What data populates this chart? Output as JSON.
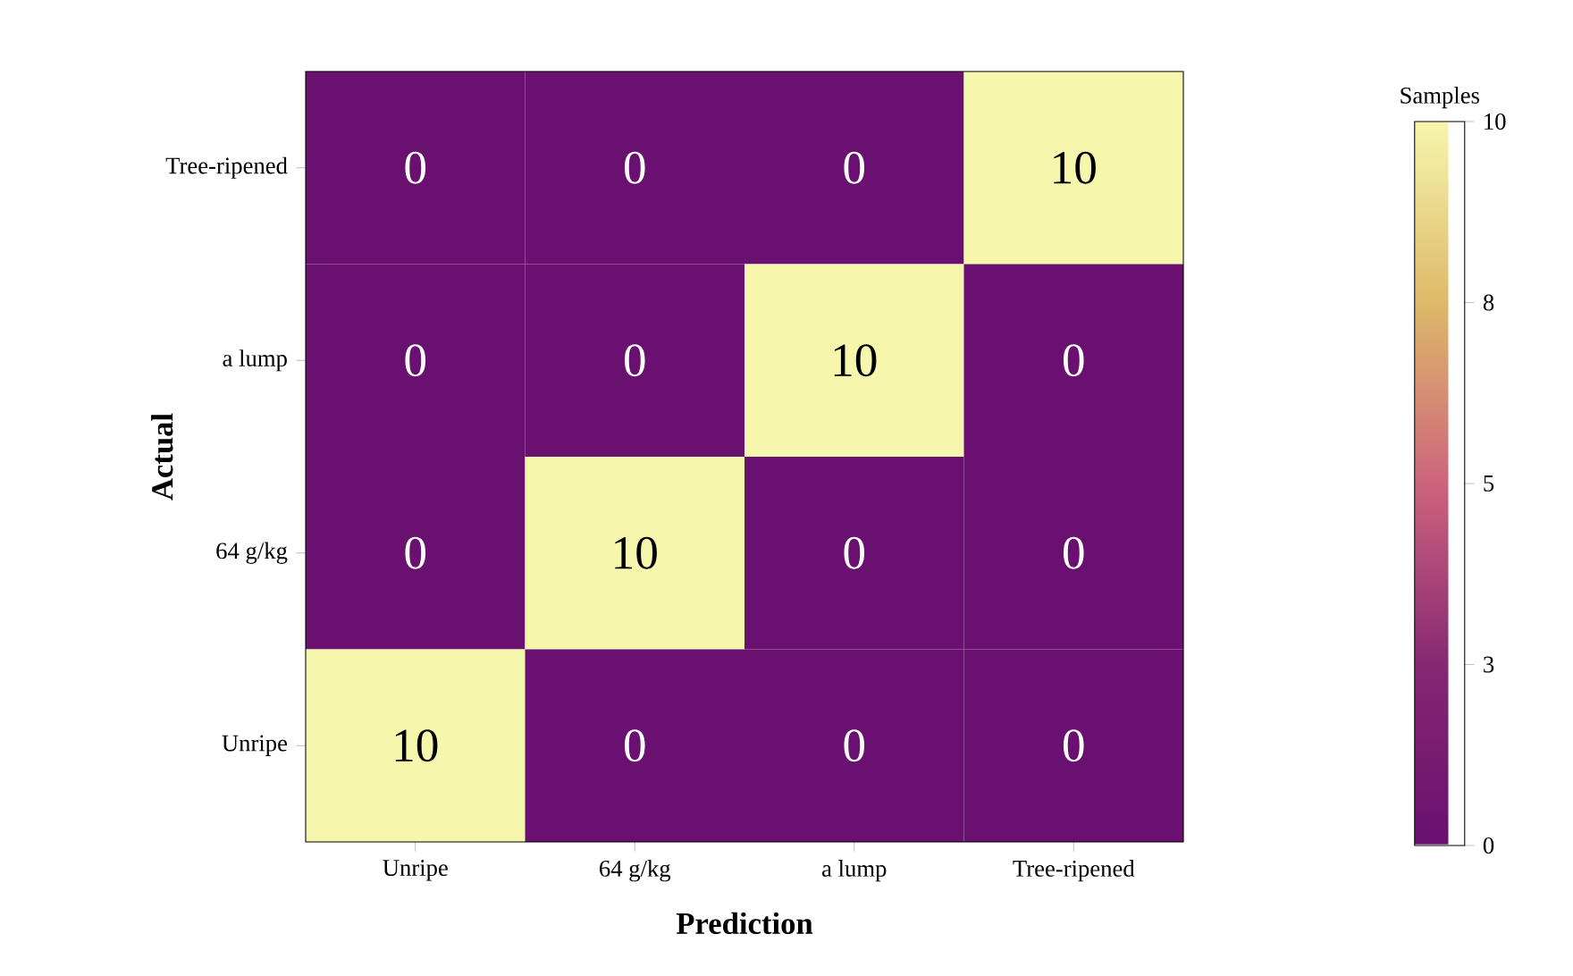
{
  "chart_data": {
    "type": "heatmap",
    "xlabel": "Prediction",
    "ylabel": "Actual",
    "clabel": "Samples",
    "categories": [
      "Unripe",
      "64 g/kg",
      "a lump",
      "Tree-ripened"
    ],
    "y_categories": [
      "Tree-ripened",
      "a lump",
      "64 g/kg",
      "Unripe"
    ],
    "cells": [
      [
        0,
        0,
        0,
        10
      ],
      [
        0,
        0,
        10,
        0
      ],
      [
        0,
        10,
        0,
        0
      ],
      [
        10,
        0,
        0,
        0
      ]
    ],
    "data_labels": true,
    "clim": [
      0,
      10
    ],
    "cticks": [
      0,
      {
        "value": 2.5,
        "label": "3"
      },
      5,
      {
        "value": 7.5,
        "label": "8"
      },
      10
    ]
  }
}
